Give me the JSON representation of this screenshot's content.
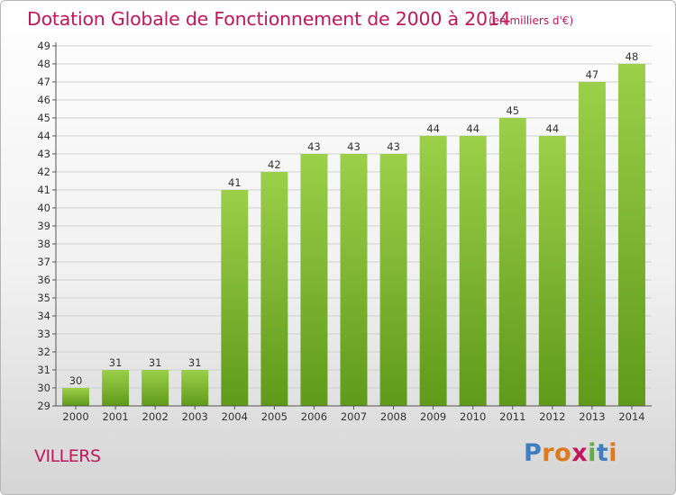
{
  "header": {
    "title": "Dotation Globale de Fonctionnement de 2000 à 2014",
    "subtitle": "(en milliers d'€)"
  },
  "footer": {
    "town": "VILLERS",
    "brand_letters": [
      "P",
      "r",
      "o",
      "x",
      "i",
      "t",
      "i"
    ]
  },
  "colors": {
    "title": "#c2185b",
    "bar_top": "#9ccf4a",
    "bar_bottom": "#5f9a1a",
    "brand": [
      "#3f7fbf",
      "#e0791c",
      "#e0791c",
      "#c2185b",
      "#6aa84f",
      "#3f7fbf",
      "#e0791c"
    ]
  },
  "chart_data": {
    "type": "bar",
    "title": "Dotation Globale de Fonctionnement de 2000 à 2014",
    "subtitle": "(en milliers d'€)",
    "xlabel": "",
    "ylabel": "",
    "categories": [
      "2000",
      "2001",
      "2002",
      "2003",
      "2004",
      "2005",
      "2006",
      "2007",
      "2008",
      "2009",
      "2010",
      "2011",
      "2012",
      "2013",
      "2014"
    ],
    "values": [
      30,
      31,
      31,
      31,
      41,
      42,
      43,
      43,
      43,
      44,
      44,
      45,
      44,
      47,
      48
    ],
    "ylim": [
      29,
      49
    ],
    "yticks": [
      29,
      30,
      31,
      32,
      33,
      34,
      35,
      36,
      37,
      38,
      39,
      40,
      41,
      42,
      43,
      44,
      45,
      46,
      47,
      48,
      49
    ],
    "grid": true
  }
}
